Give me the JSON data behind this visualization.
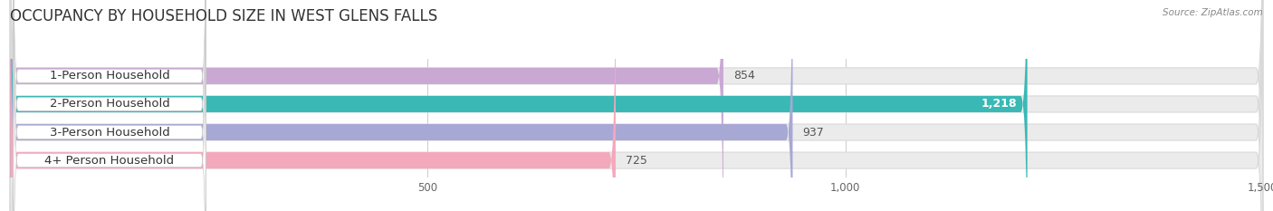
{
  "title": "OCCUPANCY BY HOUSEHOLD SIZE IN WEST GLENS FALLS",
  "source": "Source: ZipAtlas.com",
  "categories": [
    "1-Person Household",
    "2-Person Household",
    "3-Person Household",
    "4+ Person Household"
  ],
  "values": [
    854,
    1218,
    937,
    725
  ],
  "bar_colors": [
    "#c9a8d4",
    "#3ab8b5",
    "#a8a8d4",
    "#f4a8bc"
  ],
  "background_color": "#ffffff",
  "bar_bg_color": "#ebebeb",
  "bar_bg_border_color": "#d8d8d8",
  "xlim": [
    0,
    1500
  ],
  "xticks": [
    500,
    1000,
    1500
  ],
  "value_label_colors": [
    "#555555",
    "#ffffff",
    "#555555",
    "#555555"
  ],
  "title_fontsize": 12,
  "label_fontsize": 9.5,
  "value_fontsize": 9,
  "tick_fontsize": 8.5
}
